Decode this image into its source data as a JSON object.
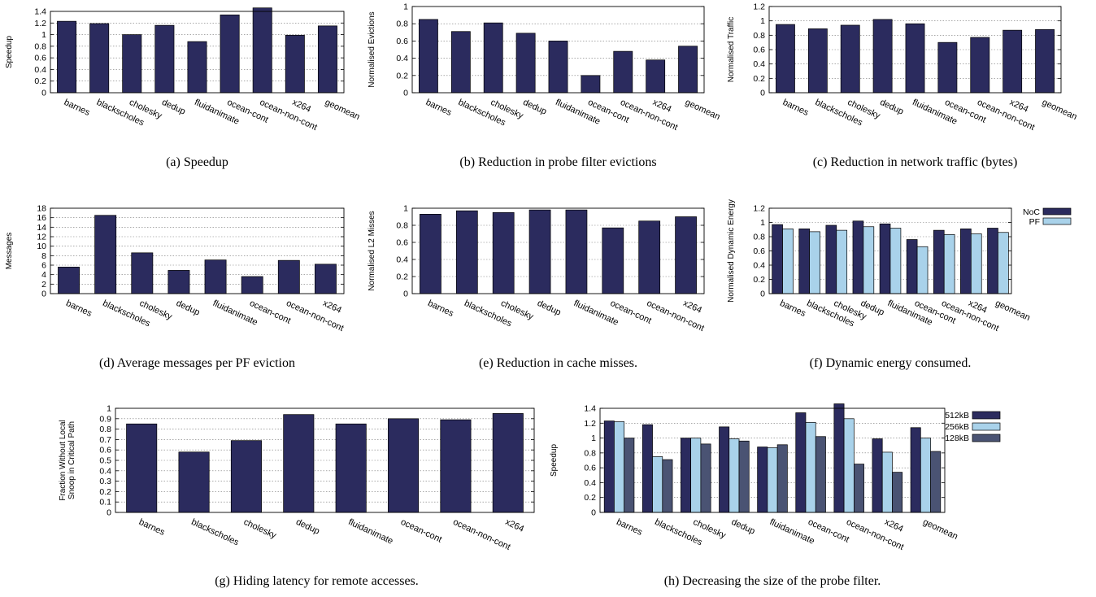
{
  "colors": {
    "dark": "#2b2b5e",
    "light": "#a9d2ea",
    "slate": "#4a5373",
    "frame": "#000000",
    "grid": "#777777"
  },
  "chart_data": [
    {
      "type": "bar",
      "caption": "(a) Speedup",
      "ylabel": "Speedup",
      "categories": [
        "barnes",
        "blackscholes",
        "cholesky",
        "dedup",
        "fluidanimate",
        "ocean-cont",
        "ocean-non-cont",
        "x264",
        "geomean"
      ],
      "series": [
        {
          "values": [
            1.23,
            1.19,
            1.0,
            1.16,
            0.88,
            1.34,
            1.46,
            0.99,
            1.15
          ]
        }
      ],
      "ylim": [
        0,
        1.4
      ],
      "yticks": [
        "0",
        "0.2",
        "0.4",
        "0.6",
        "0.8",
        "1",
        "1.2",
        "1.4"
      ],
      "grid": true
    },
    {
      "type": "bar",
      "caption": "(b) Reduction in probe filter evictions",
      "ylabel": "Normalised Evictions",
      "categories": [
        "barnes",
        "blackscholes",
        "cholesky",
        "dedup",
        "fluidanimate",
        "ocean-cont",
        "ocean-non-cont",
        "x264",
        "geomean"
      ],
      "series": [
        {
          "values": [
            0.85,
            0.71,
            0.81,
            0.69,
            0.6,
            0.2,
            0.48,
            0.38,
            0.54
          ]
        }
      ],
      "ylim": [
        0,
        1
      ],
      "yticks": [
        "0",
        "0.2",
        "0.4",
        "0.6",
        "0.8",
        "1"
      ],
      "grid": true
    },
    {
      "type": "bar",
      "caption": "(c) Reduction in network traffic (bytes)",
      "ylabel": "Normalised Traffic",
      "categories": [
        "barnes",
        "blackscholes",
        "cholesky",
        "dedup",
        "fluidanimate",
        "ocean-cont",
        "ocean-non-cont",
        "x264",
        "geomean"
      ],
      "series": [
        {
          "values": [
            0.95,
            0.89,
            0.94,
            1.02,
            0.96,
            0.7,
            0.77,
            0.87,
            0.88
          ]
        }
      ],
      "ylim": [
        0,
        1.2
      ],
      "yticks": [
        "0",
        "0.2",
        "0.4",
        "0.6",
        "0.8",
        "1",
        "1.2"
      ],
      "grid": true
    },
    {
      "type": "bar",
      "caption": "(d) Average messages per PF eviction",
      "ylabel": "Messages",
      "categories": [
        "barnes",
        "blackscholes",
        "cholesky",
        "dedup",
        "fluidanimate",
        "ocean-cont",
        "ocean-non-cont",
        "x264"
      ],
      "series": [
        {
          "values": [
            5.6,
            16.5,
            8.6,
            4.9,
            7.1,
            3.6,
            7.0,
            6.2
          ]
        }
      ],
      "ylim": [
        0,
        18
      ],
      "yticks": [
        "0",
        "2",
        "4",
        "6",
        "8",
        "10",
        "12",
        "14",
        "16",
        "18"
      ],
      "grid": true
    },
    {
      "type": "bar",
      "caption": "(e) Reduction in cache misses.",
      "ylabel": "Normalised L2 Misses",
      "categories": [
        "barnes",
        "blackscholes",
        "cholesky",
        "dedup",
        "fluidanimate",
        "ocean-cont",
        "ocean-non-cont",
        "x264"
      ],
      "series": [
        {
          "values": [
            0.93,
            0.97,
            0.95,
            0.98,
            0.98,
            0.77,
            0.85,
            0.9
          ]
        }
      ],
      "ylim": [
        0,
        1
      ],
      "yticks": [
        "0",
        "0.2",
        "0.4",
        "0.6",
        "0.8",
        "1"
      ],
      "grid": true
    },
    {
      "type": "bar",
      "caption": "(f) Dynamic energy consumed.",
      "ylabel": "Normalised Dynamic Energy",
      "categories": [
        "barnes",
        "blackscholes",
        "cholesky",
        "dedup",
        "fluidanimate",
        "ocean-cont",
        "ocean-non-cont",
        "x264",
        "geomean"
      ],
      "series": [
        {
          "name": "NoC",
          "values": [
            0.97,
            0.91,
            0.96,
            1.02,
            0.98,
            0.76,
            0.89,
            0.91,
            0.92
          ]
        },
        {
          "name": "PF",
          "values": [
            0.91,
            0.87,
            0.89,
            0.94,
            0.92,
            0.66,
            0.83,
            0.84,
            0.86
          ]
        }
      ],
      "ylim": [
        0,
        1.2
      ],
      "yticks": [
        "0",
        "0.2",
        "0.4",
        "0.6",
        "0.8",
        "1",
        "1.2"
      ],
      "legend": "outside-top-right",
      "grid": true
    },
    {
      "type": "bar",
      "caption": "(g) Hiding latency for remote accesses.",
      "ylabel": "Fraction Without Local Snoop in Critical Path",
      "categories": [
        "barnes",
        "blackscholes",
        "cholesky",
        "dedup",
        "fluidanimate",
        "ocean-cont",
        "ocean-non-cont",
        "x264"
      ],
      "series": [
        {
          "values": [
            0.85,
            0.58,
            0.69,
            0.94,
            0.85,
            0.9,
            0.89,
            0.95
          ]
        }
      ],
      "ylim": [
        0,
        1
      ],
      "yticks": [
        "0",
        "0.1",
        "0.2",
        "0.3",
        "0.4",
        "0.5",
        "0.6",
        "0.7",
        "0.8",
        "0.9",
        "1"
      ],
      "grid": true
    },
    {
      "type": "bar",
      "caption": "(h) Decreasing the size of the probe filter.",
      "ylabel": "Speedup",
      "categories": [
        "barnes",
        "blackscholes",
        "cholesky",
        "dedup",
        "fluidanimate",
        "ocean-cont",
        "ocean-non-cont",
        "x264",
        "geomean"
      ],
      "series": [
        {
          "name": "512kB",
          "values": [
            1.23,
            1.18,
            1.0,
            1.15,
            0.88,
            1.34,
            1.46,
            0.99,
            1.14
          ]
        },
        {
          "name": "256kB",
          "values": [
            1.22,
            0.75,
            1.0,
            0.99,
            0.87,
            1.21,
            1.26,
            0.81,
            1.0
          ]
        },
        {
          "name": "128kB",
          "values": [
            1.0,
            0.71,
            0.92,
            0.96,
            0.91,
            1.02,
            0.65,
            0.54,
            0.82
          ]
        }
      ],
      "ylim": [
        0,
        1.4
      ],
      "yticks": [
        "0",
        "0.2",
        "0.4",
        "0.6",
        "0.8",
        "1",
        "1.2",
        "1.4"
      ],
      "legend": "outside-top-right",
      "grid": true
    }
  ]
}
